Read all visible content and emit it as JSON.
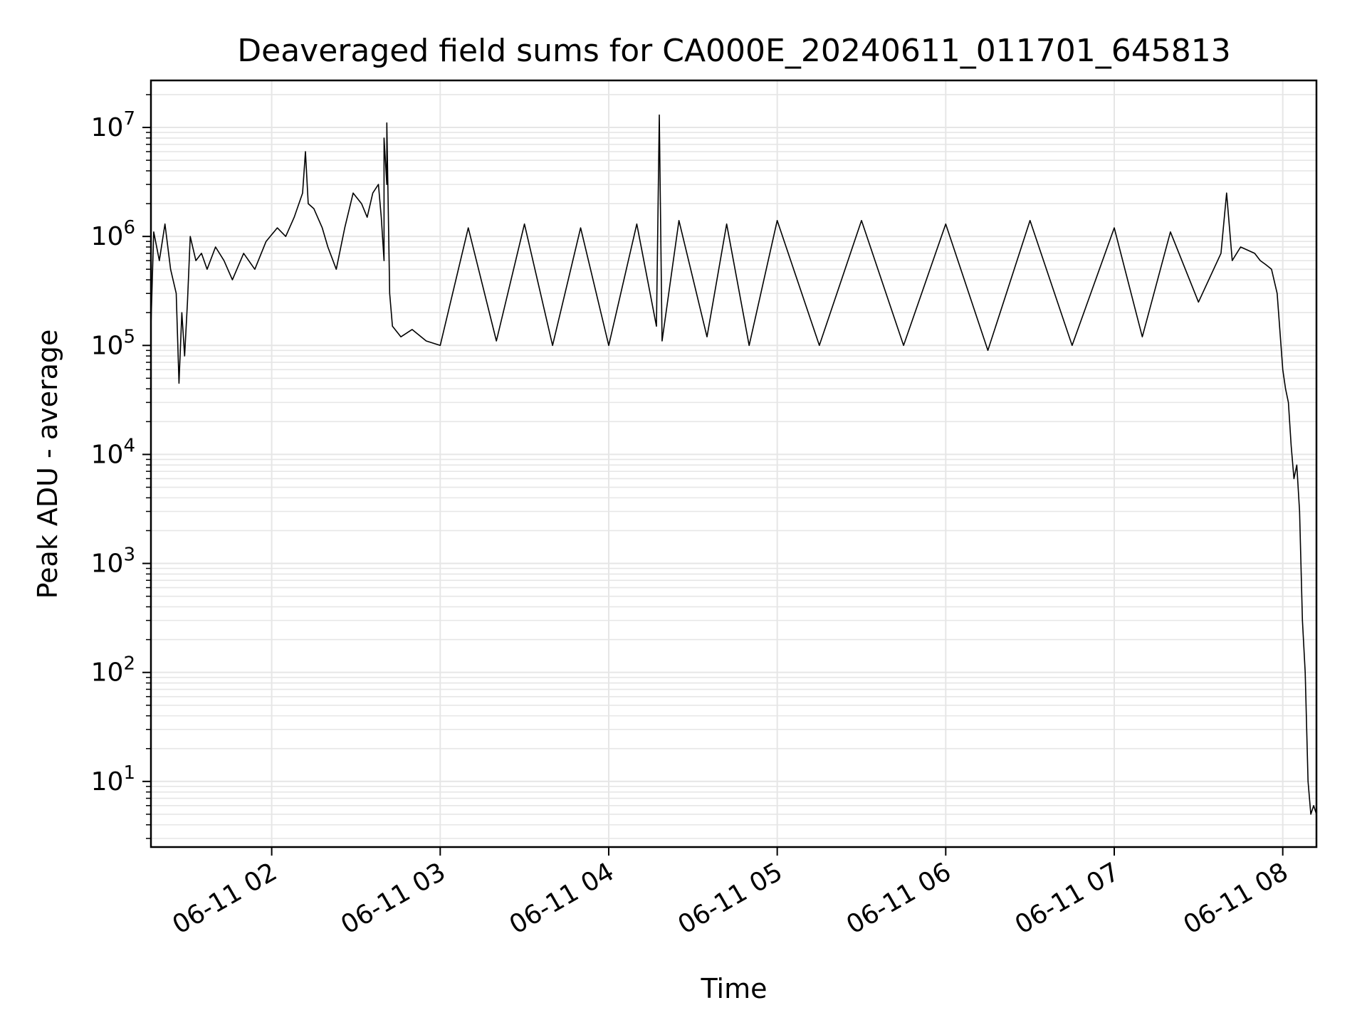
{
  "chart_data": {
    "type": "line",
    "title": "Deaveraged field sums for CA000E_20240611_011701_645813",
    "xlabel": "Time",
    "ylabel": "Peak ADU - average",
    "yscale": "log",
    "ylim": [
      2.5,
      27000000
    ],
    "xlim": [
      "2024-06-11 01:17",
      "2024-06-11 08:12"
    ],
    "x_ticks": [
      {
        "t": "2024-06-11 02:00",
        "label": "06-11 02"
      },
      {
        "t": "2024-06-11 03:00",
        "label": "06-11 03"
      },
      {
        "t": "2024-06-11 04:00",
        "label": "06-11 04"
      },
      {
        "t": "2024-06-11 05:00",
        "label": "06-11 05"
      },
      {
        "t": "2024-06-11 06:00",
        "label": "06-11 06"
      },
      {
        "t": "2024-06-11 07:00",
        "label": "06-11 07"
      },
      {
        "t": "2024-06-11 08:00",
        "label": "06-11 08"
      }
    ],
    "y_ticks": [
      {
        "v": 10,
        "base": "10",
        "exp": "1"
      },
      {
        "v": 100,
        "base": "10",
        "exp": "2"
      },
      {
        "v": 1000,
        "base": "10",
        "exp": "3"
      },
      {
        "v": 10000,
        "base": "10",
        "exp": "4"
      },
      {
        "v": 100000,
        "base": "10",
        "exp": "5"
      },
      {
        "v": 1000000,
        "base": "10",
        "exp": "6"
      },
      {
        "v": 10000000,
        "base": "10",
        "exp": "7"
      }
    ],
    "grid": true,
    "line_color": "#000000",
    "grid_color": "#e6e6e6",
    "series": [
      {
        "x": [
          "2024-06-11 01:17",
          "2024-06-11 01:18",
          "2024-06-11 01:20",
          "2024-06-11 01:22",
          "2024-06-11 01:24",
          "2024-06-11 01:26",
          "2024-06-11 01:27",
          "2024-06-11 01:28",
          "2024-06-11 01:29",
          "2024-06-11 01:30",
          "2024-06-11 01:31",
          "2024-06-11 01:33",
          "2024-06-11 01:35",
          "2024-06-11 01:37",
          "2024-06-11 01:40",
          "2024-06-11 01:43",
          "2024-06-11 01:46",
          "2024-06-11 01:50",
          "2024-06-11 01:54",
          "2024-06-11 01:58",
          "2024-06-11 02:02",
          "2024-06-11 02:05",
          "2024-06-11 02:08",
          "2024-06-11 02:11",
          "2024-06-11 02:12",
          "2024-06-11 02:13",
          "2024-06-11 02:15",
          "2024-06-11 02:18",
          "2024-06-11 02:20",
          "2024-06-11 02:23",
          "2024-06-11 02:26",
          "2024-06-11 02:29",
          "2024-06-11 02:32",
          "2024-06-11 02:34",
          "2024-06-11 02:36",
          "2024-06-11 02:38",
          "2024-06-11 02:39",
          "2024-06-11 02:40",
          "2024-06-11 02:40",
          "2024-06-11 02:41",
          "2024-06-11 02:41",
          "2024-06-11 02:42",
          "2024-06-11 02:43",
          "2024-06-11 02:46",
          "2024-06-11 02:50",
          "2024-06-11 02:55",
          "2024-06-11 03:00",
          "2024-06-11 03:10",
          "2024-06-11 03:20",
          "2024-06-11 03:30",
          "2024-06-11 03:40",
          "2024-06-11 03:50",
          "2024-06-11 04:00",
          "2024-06-11 04:10",
          "2024-06-11 04:17",
          "2024-06-11 04:18",
          "2024-06-11 04:19",
          "2024-06-11 04:25",
          "2024-06-11 04:35",
          "2024-06-11 04:42",
          "2024-06-11 04:50",
          "2024-06-11 05:00",
          "2024-06-11 05:15",
          "2024-06-11 05:30",
          "2024-06-11 05:45",
          "2024-06-11 06:00",
          "2024-06-11 06:15",
          "2024-06-11 06:30",
          "2024-06-11 06:45",
          "2024-06-11 07:00",
          "2024-06-11 07:10",
          "2024-06-11 07:20",
          "2024-06-11 07:30",
          "2024-06-11 07:38",
          "2024-06-11 07:40",
          "2024-06-11 07:42",
          "2024-06-11 07:45",
          "2024-06-11 07:50",
          "2024-06-11 07:52",
          "2024-06-11 07:54",
          "2024-06-11 07:56",
          "2024-06-11 07:58",
          "2024-06-11 08:00",
          "2024-06-11 08:01",
          "2024-06-11 08:02",
          "2024-06-11 08:03",
          "2024-06-11 08:04",
          "2024-06-11 08:05",
          "2024-06-11 08:06",
          "2024-06-11 08:07",
          "2024-06-11 08:08",
          "2024-06-11 08:09",
          "2024-06-11 08:10",
          "2024-06-11 08:11",
          "2024-06-11 08:12"
        ],
        "y": [
          150000,
          1100000,
          600000,
          1300000,
          500000,
          300000,
          45000,
          200000,
          80000,
          250000,
          1000000,
          600000,
          700000,
          500000,
          800000,
          600000,
          400000,
          700000,
          500000,
          900000,
          1200000,
          1000000,
          1500000,
          2500000,
          6000000,
          2000000,
          1800000,
          1200000,
          800000,
          500000,
          1200000,
          2500000,
          2000000,
          1500000,
          2500000,
          3000000,
          1500000,
          600000,
          8000000,
          3000000,
          11000000,
          300000,
          150000,
          120000,
          140000,
          110000,
          100000,
          1200000,
          110000,
          1300000,
          100000,
          1200000,
          100000,
          1300000,
          150000,
          13000000,
          110000,
          1400000,
          120000,
          1300000,
          100000,
          1400000,
          100000,
          1400000,
          100000,
          1300000,
          90000,
          1400000,
          100000,
          1200000,
          120000,
          1100000,
          250000,
          700000,
          2500000,
          600000,
          800000,
          700000,
          600000,
          550000,
          500000,
          300000,
          60000,
          40000,
          30000,
          12000,
          6000,
          8000,
          3000,
          300,
          100,
          10,
          5,
          6,
          5
        ]
      }
    ]
  }
}
